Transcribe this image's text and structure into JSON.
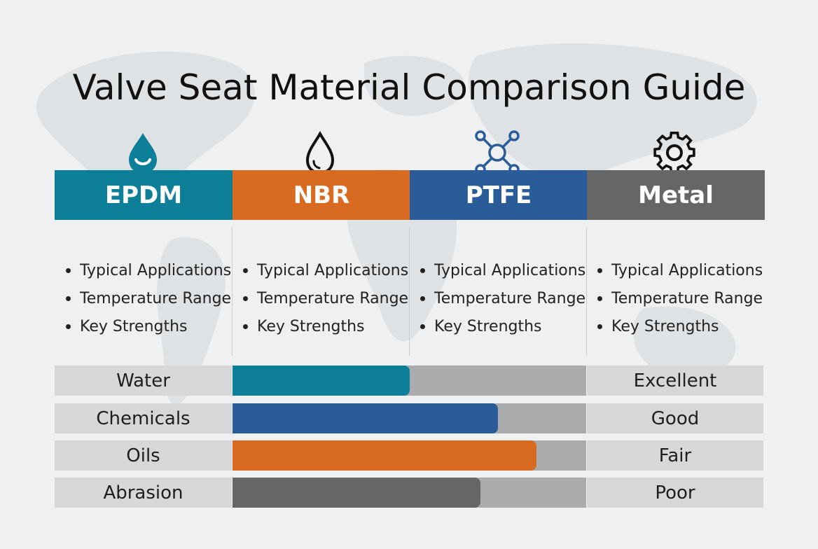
{
  "title": "Valve Seat Material Comparison Guide",
  "colors": {
    "epdm": "#0e7f98",
    "nbr": "#d96a22",
    "ptfe": "#2a5c99",
    "metal": "#666666"
  },
  "materials": [
    {
      "name": "EPDM",
      "icon": "water-drop-smile-icon",
      "bullets": [
        "Typical Applications",
        "Temperature Range",
        "Key Strengths"
      ]
    },
    {
      "name": "NBR",
      "icon": "oil-drop-icon",
      "bullets": [
        "Typical Applications",
        "Temperature Range",
        "Key Strengths"
      ]
    },
    {
      "name": "PTFE",
      "icon": "molecule-icon",
      "bullets": [
        "Typical Applications",
        "Temperature Range",
        "Key Strengths"
      ]
    },
    {
      "name": "Metal",
      "icon": "gear-icon",
      "bullets": [
        "Typical Applications",
        "Temperature Range",
        "Key Strengths"
      ]
    }
  ],
  "rows": [
    {
      "label": "Water",
      "rating": "Excellent",
      "level": 0.5,
      "color": "#0e7f98"
    },
    {
      "label": "Chemicals",
      "rating": "Good",
      "level": 0.75,
      "color": "#2a5c99"
    },
    {
      "label": "Oils",
      "rating": "Fair",
      "level": 0.86,
      "color": "#d96a22"
    },
    {
      "label": "Abrasion",
      "rating": "Poor",
      "level": 0.7,
      "color": "#666666"
    }
  ]
}
